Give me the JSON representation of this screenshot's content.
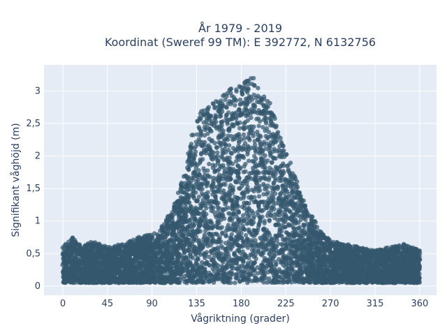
{
  "chart_data": {
    "type": "scatter",
    "title": "År 1979 - 2019",
    "subtitle": "Koordinat (Sweref 99 TM): E 392772, N 6132756",
    "xlabel": "Vågriktning (grader)",
    "ylabel": "Signifikant våghöjd (m)",
    "xlim": [
      -19,
      377
    ],
    "ylim": [
      -0.14,
      3.4
    ],
    "x_ticks": [
      0,
      45,
      90,
      135,
      180,
      225,
      270,
      315,
      360
    ],
    "x_tick_labels": [
      "0",
      "45",
      "90",
      "135",
      "180",
      "225",
      "270",
      "315",
      "360"
    ],
    "y_ticks": [
      0,
      0.5,
      1,
      1.5,
      2,
      2.5,
      3
    ],
    "y_tick_labels": [
      "0",
      "0,5",
      "1",
      "1,5",
      "2",
      "2,5",
      "3"
    ],
    "grid": true,
    "marker_color": "#34586e",
    "plot_background": "#e5ecf6",
    "envelope": {
      "direction_deg": [
        0,
        10,
        20,
        30,
        45,
        60,
        75,
        90,
        100,
        110,
        120,
        130,
        140,
        150,
        160,
        170,
        180,
        190,
        200,
        210,
        220,
        230,
        240,
        250,
        260,
        270,
        285,
        300,
        315,
        330,
        345,
        360
      ],
      "max_height_m": [
        0.6,
        0.75,
        0.6,
        0.7,
        0.6,
        0.65,
        0.75,
        0.8,
        0.95,
        1.15,
        1.6,
        2.3,
        2.75,
        2.8,
        2.9,
        3.05,
        3.1,
        3.25,
        3.1,
        2.8,
        2.3,
        1.9,
        1.45,
        1.1,
        0.85,
        0.7,
        0.65,
        0.6,
        0.55,
        0.6,
        0.65,
        0.55
      ],
      "min_height_m": 0.05
    }
  }
}
